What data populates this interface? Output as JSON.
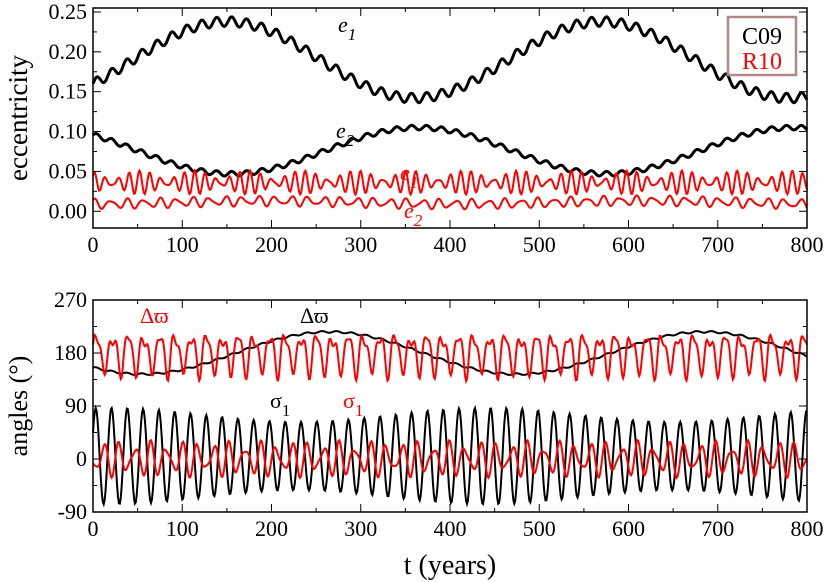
{
  "chart_data": [
    {
      "type": "line",
      "xlabel": "",
      "ylabel": "eccentricity",
      "xlim": [
        0,
        800
      ],
      "ylim": [
        -0.021,
        0.255
      ],
      "xticks": [
        0,
        100,
        200,
        300,
        400,
        500,
        600,
        700,
        800
      ],
      "yticks": [
        "0.00",
        "0.05",
        "0.10",
        "0.15",
        "0.20",
        "0.25"
      ],
      "legend": {
        "placement": "top-right",
        "entries": [
          {
            "label": "C09",
            "color": "#000000"
          },
          {
            "label": "R10",
            "color": "#ff0000"
          }
        ]
      },
      "series": [
        {
          "name": "C09 e1",
          "label": "e",
          "sub": "1",
          "color": "#000000",
          "mean": 0.19,
          "secular_amp": 0.048,
          "secular_period": 420,
          "peak_t": 150,
          "fast": [
            [
              0.006,
              16.8,
              0
            ]
          ]
        },
        {
          "name": "C09 e2",
          "label": "e",
          "sub": "2",
          "color": "#000000",
          "mean": 0.076,
          "secular_amp": -0.029,
          "secular_period": 420,
          "peak_t": 155,
          "fast": [
            [
              0.003,
              16.8,
              0
            ]
          ]
        },
        {
          "name": "R10 e1",
          "label": "e",
          "sub": "1",
          "color": "#ff0000",
          "mean": 0.036,
          "secular_amp": 0,
          "secular_period": 420,
          "peak_t": 0,
          "fast": [
            [
              0.009,
              12.4,
              0.3
            ],
            [
              0.006,
              10.3,
              1.2
            ]
          ]
        },
        {
          "name": "R10 e2",
          "label": "e",
          "sub": "2",
          "color": "#ff0000",
          "mean": 0.011,
          "secular_amp": 0.002,
          "secular_period": 420,
          "peak_t": 200,
          "fast": [
            [
              0.005,
              18.4,
              1.0
            ],
            [
              0.002,
              12.4,
              0.5
            ]
          ]
        }
      ]
    },
    {
      "type": "line",
      "xlabel": "t (years)",
      "ylabel": "angles (°)",
      "xlim": [
        0,
        800
      ],
      "ylim": [
        -90,
        270
      ],
      "xticks": [
        0,
        100,
        200,
        300,
        400,
        500,
        600,
        700,
        800
      ],
      "yticks": [
        "-90",
        "0",
        "90",
        "180",
        "270"
      ],
      "series": [
        {
          "name": "C09 Δϖ",
          "label": "Δϖ",
          "sub": "",
          "color": "#000000",
          "mean": 180,
          "secular_amp": 36,
          "secular_period": 420,
          "peak_t": 265,
          "fast": [
            [
              1.5,
              16.8,
              0
            ]
          ]
        },
        {
          "name": "R10 Δϖ",
          "label": "Δϖ",
          "sub": "",
          "color": "#ff0000",
          "mean": 180,
          "secular_amp": 0,
          "secular_period": 420,
          "peak_t": 0,
          "fast": [
            [
              30,
              17.6,
              0
            ],
            [
              12,
              8.8,
              1.3
            ],
            [
              6,
              12.4,
              0.4
            ]
          ]
        },
        {
          "name": "C09 σ1",
          "label": "σ",
          "sub": "1",
          "color": "#000000",
          "mean": 5,
          "secular_amp": 0,
          "secular_period": 420,
          "peak_t": 0,
          "fast": [
            [
              70,
              17.7,
              0.5
            ]
          ],
          "mod": [
            0.17,
            420,
            20
          ]
        },
        {
          "name": "R10 σ1",
          "label": "σ",
          "sub": "1",
          "color": "#ff0000",
          "mean": 0,
          "secular_amp": 0,
          "secular_period": 420,
          "peak_t": 0,
          "fast": [
            [
              22,
              17.6,
              3.6
            ],
            [
              10,
              12.4,
              0.2
            ]
          ]
        }
      ]
    }
  ]
}
